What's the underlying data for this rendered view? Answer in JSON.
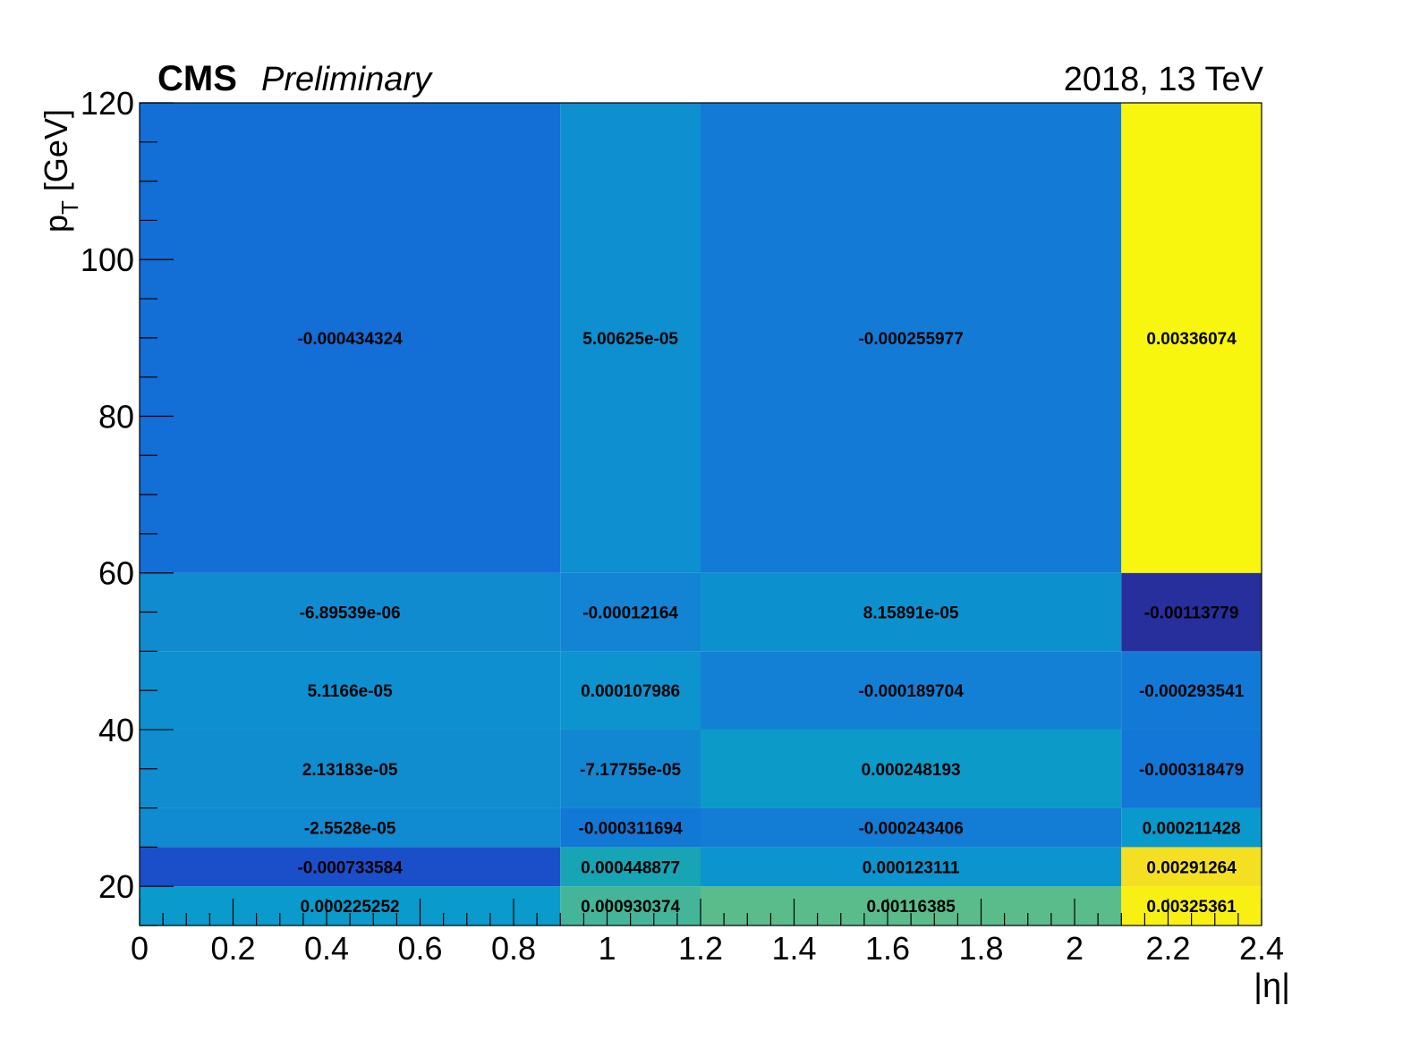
{
  "header": {
    "experiment": "CMS",
    "status": "Preliminary",
    "lumi": "2018, 13 TeV"
  },
  "axes": {
    "ylabel_main": "p",
    "ylabel_sub": "T",
    "ylabel_unit": " [GeV]",
    "xlabel": "|η|"
  },
  "colors": {
    "palette": [
      "#262f9c",
      "#1a51cd",
      "#1272d7",
      "#137fd5",
      "#108ad0",
      "#0a9acc",
      "#17a4b4",
      "#54bb8f",
      "#f7e020",
      "#f8f60f"
    ]
  },
  "chart_data": {
    "type": "heatmap",
    "title": "",
    "xlabel": "|η|",
    "ylabel": "p_T [GeV]",
    "x_edges": [
      0,
      0.9,
      1.2,
      2.1,
      2.4
    ],
    "y_edges": [
      15,
      20,
      25,
      30,
      40,
      50,
      60,
      120
    ],
    "xlim": [
      0,
      2.4
    ],
    "ylim": [
      15,
      120
    ],
    "x_ticks": [
      "0",
      "0.2",
      "0.4",
      "0.6",
      "0.8",
      "1",
      "1.2",
      "1.4",
      "1.6",
      "1.8",
      "2",
      "2.2",
      "2.4"
    ],
    "y_ticks": [
      "20",
      "40",
      "60",
      "80",
      "100",
      "120"
    ],
    "labels": [
      [
        "0.000225252",
        "0.000930374",
        "0.00116385",
        "0.00325361"
      ],
      [
        "-0.000733584",
        "0.000448877",
        "0.000123111",
        "0.00291264"
      ],
      [
        "-2.5528e-05",
        "-0.000311694",
        "-0.000243406",
        "0.000211428"
      ],
      [
        "2.13183e-05",
        "-7.17755e-05",
        "0.000248193",
        "-0.000318479"
      ],
      [
        "5.1166e-05",
        "0.000107986",
        "-0.000189704",
        "-0.000293541"
      ],
      [
        "-6.89539e-06",
        "-0.00012164",
        "8.15891e-05",
        "-0.00113779"
      ],
      [
        "-0.000434324",
        "5.00625e-05",
        "-0.000255977",
        "0.00336074"
      ]
    ],
    "values": [
      [
        0.000225252,
        0.000930374,
        0.00116385,
        0.00325361
      ],
      [
        -0.000733584,
        0.000448877,
        0.000123111,
        0.00291264
      ],
      [
        -2.5528e-05,
        -0.000311694,
        -0.000243406,
        0.000211428
      ],
      [
        2.13183e-05,
        -7.17755e-05,
        0.000248193,
        -0.000318479
      ],
      [
        5.1166e-05,
        0.000107986,
        -0.000189704,
        -0.000293541
      ],
      [
        -6.89539e-06,
        -0.00012164,
        8.15891e-05,
        -0.00113779
      ],
      [
        -0.000434324,
        5.00625e-05,
        -0.000255977,
        0.00336074
      ]
    ],
    "zlim": [
      -0.00113779,
      0.00336074
    ],
    "grid": false,
    "legend": "none"
  }
}
